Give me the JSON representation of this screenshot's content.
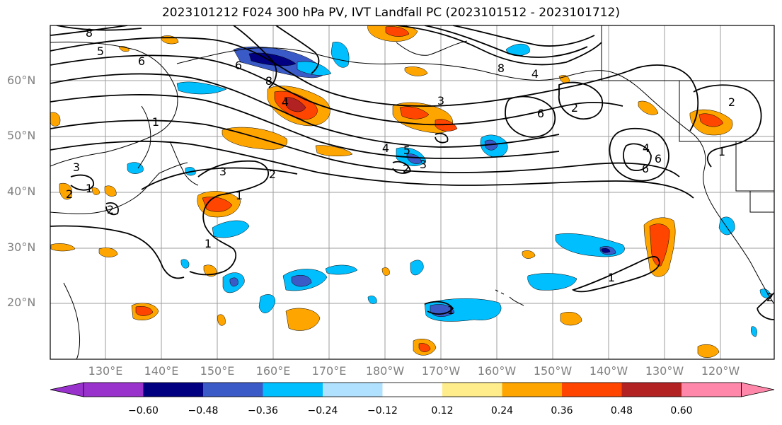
{
  "title": "2023101212 F024 300 hPa PV, IVT Landfall PC (2023101512 - 2023101712)",
  "lat_labels": [
    "60°N",
    "50°N",
    "40°N",
    "30°N",
    "20°N"
  ],
  "lon_labels": [
    "130°E",
    "140°E",
    "150°E",
    "160°E",
    "170°E",
    "180°W",
    "170°W",
    "160°W",
    "150°W",
    "140°W",
    "130°W",
    "120°W"
  ],
  "colorbar": {
    "colors": [
      "#9932cc",
      "#000080",
      "#3a5bc7",
      "#00bfff",
      "#b0e2ff",
      "#ffffff",
      "#ffec8b",
      "#ffa500",
      "#ff4500",
      "#b22222",
      "#ff88aa"
    ],
    "tick_labels": [
      "−0.60",
      "−0.48",
      "−0.36",
      "−0.24",
      "−0.12",
      "0.12",
      "0.24",
      "0.36",
      "0.48",
      "0.60"
    ]
  },
  "contour_labels": [
    "8",
    "5",
    "6",
    "6",
    "8",
    "4",
    "3",
    "1",
    "3",
    "4",
    "5",
    "2",
    "2",
    "3",
    "6",
    "2",
    "6",
    "2",
    "6",
    "4",
    "1",
    "1",
    "2",
    "3",
    "1",
    "1",
    "2",
    "1",
    "2",
    "1",
    "8",
    "4"
  ]
}
